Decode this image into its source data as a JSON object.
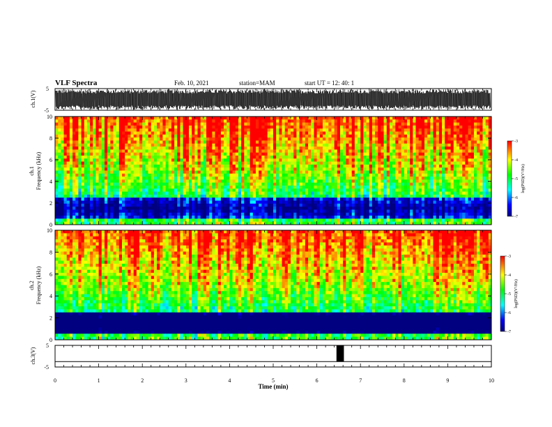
{
  "header": {
    "title": "VLF Spectra",
    "date": "Feb. 10, 2021",
    "station": "station=MAM",
    "start": "start  UT  =   12: 40: 1"
  },
  "chart_data": [
    {
      "type": "line",
      "panel": "ch1-waveform",
      "ylabel": "ch.1(V)",
      "ylim": [
        -5,
        5
      ],
      "ytick_labels": [
        "5",
        "-5"
      ],
      "xlim": [
        0,
        10
      ],
      "note": "dense oscillating waveform saturating the range"
    },
    {
      "type": "heatmap",
      "panel": "ch1-spectrogram",
      "ylabel": "ch.1 Frequency (kHz)",
      "xlim": [
        0,
        10
      ],
      "ylim": [
        0,
        10
      ],
      "ytick_labels": [
        "0",
        "2",
        "4",
        "6",
        "8",
        "10"
      ],
      "colorbar": {
        "label": "log(PSD)(V²/Hz)",
        "range": [
          -7,
          -3
        ],
        "tick_labels": [
          "-3",
          "-4",
          "-5",
          "-6",
          "-7"
        ]
      }
    },
    {
      "type": "heatmap",
      "panel": "ch2-spectrogram",
      "ylabel": "ch.2 Frequency (kHz)",
      "xlim": [
        0,
        10
      ],
      "ylim": [
        0,
        10
      ],
      "ytick_labels": [
        "0",
        "2",
        "4",
        "6",
        "8",
        "10"
      ],
      "colorbar": {
        "label": "log(PSD)(V²/Hz)",
        "range": [
          -7,
          -3
        ],
        "tick_labels": [
          "-3",
          "-4",
          "-5",
          "-6",
          "-7"
        ]
      }
    },
    {
      "type": "line",
      "panel": "ch3-waveform",
      "ylabel": "ch.3(V)",
      "ylim": [
        -5,
        5
      ],
      "ytick_labels": [
        "5",
        "-5"
      ],
      "xlim": [
        0,
        10
      ],
      "baseline": -2.5,
      "pulse": {
        "x_start": 6.45,
        "x_end": 6.62,
        "y_top": 5,
        "y_bottom": -2.5
      }
    }
  ],
  "xaxis": {
    "label": "Time  (min)",
    "tick_labels": [
      "0",
      "1",
      "2",
      "3",
      "4",
      "5",
      "6",
      "7",
      "8",
      "9",
      "10"
    ]
  },
  "colors": {
    "frame": "#000000",
    "colormap": [
      "#000080",
      "#0000ff",
      "#00ffff",
      "#00ff00",
      "#ffff00",
      "#ff0000"
    ]
  }
}
